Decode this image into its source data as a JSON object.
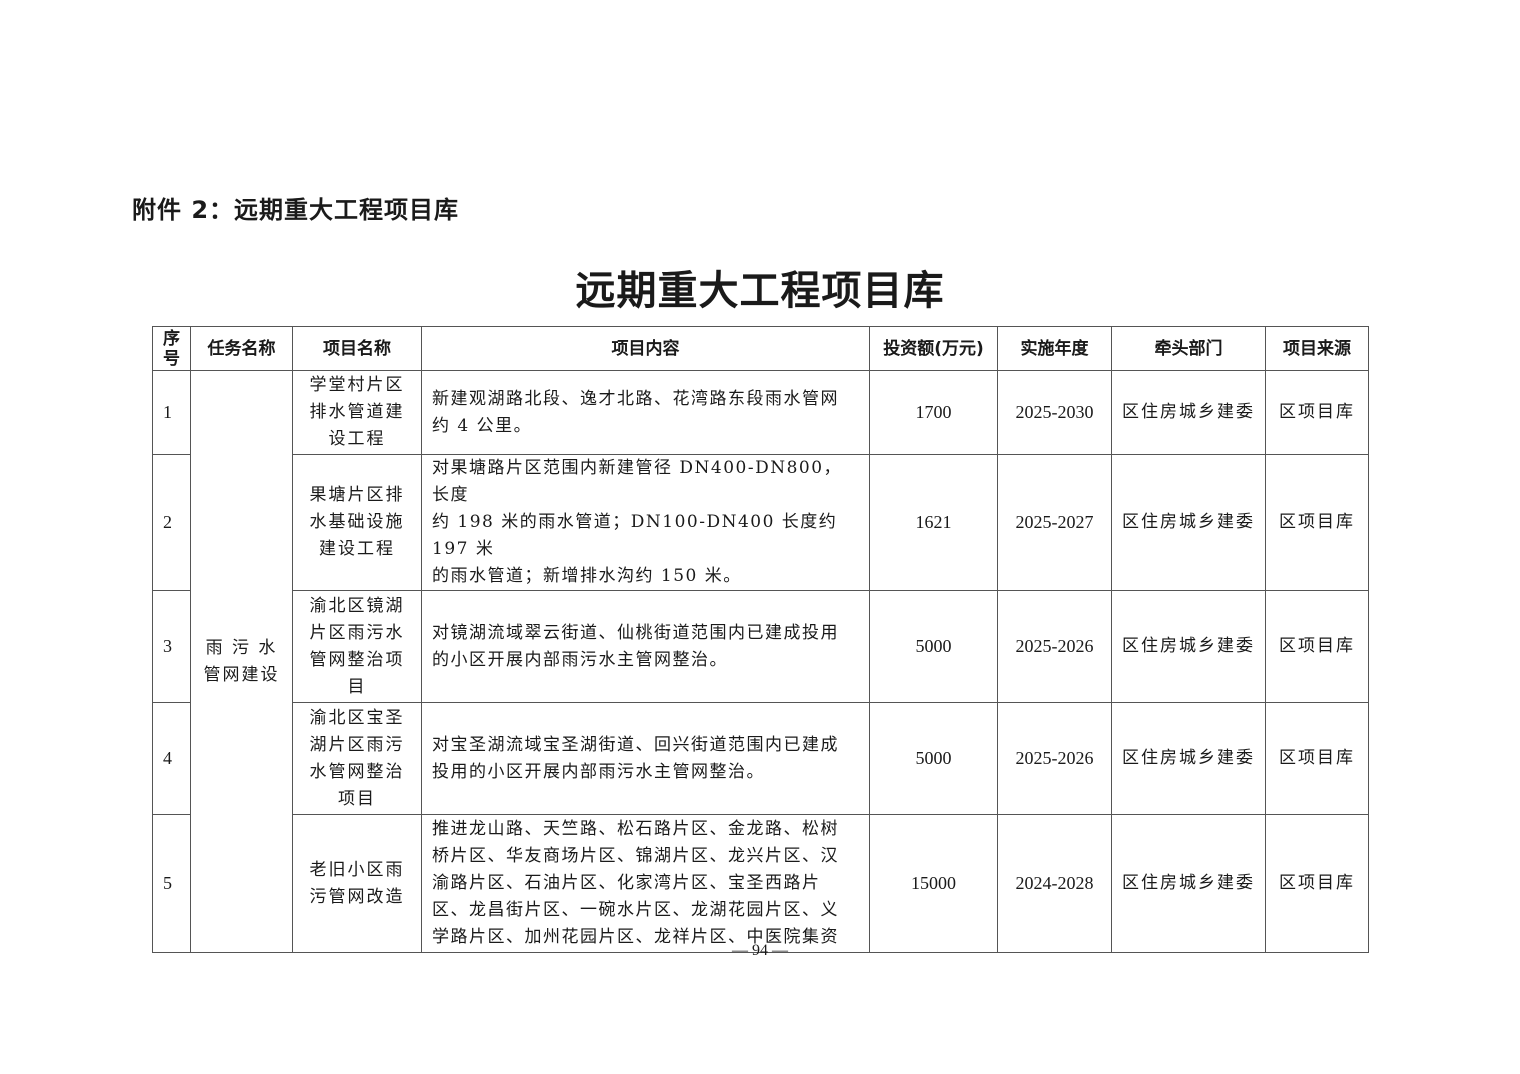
{
  "attachment_heading": "附件 2：远期重大工程项目库",
  "title": "远期重大工程项目库",
  "table": {
    "headers": [
      "序\n号",
      "任务名称",
      "项目名称",
      "项目内容",
      "投资额(万元)",
      "实施年度",
      "牵头部门",
      "项目来源"
    ],
    "task": "雨 污 水\n管网建设",
    "rows": [
      {
        "no": "1",
        "name": "学堂村片区\n排水管道建\n设工程",
        "content": "新建观湖路北段、逸才北路、花湾路东段雨水管网\n约 4 公里。",
        "investment": "1700",
        "years": "2025-2030",
        "dept": "区住房城乡建委",
        "source": "区项目库"
      },
      {
        "no": "2",
        "name": "果塘片区排\n水基础设施\n建设工程",
        "content": "对果塘路片区范围内新建管径 DN400-DN800，长度\n约 198 米的雨水管道；DN100-DN400 长度约 197 米\n的雨水管道；新增排水沟约 150 米。",
        "investment": "1621",
        "years": "2025-2027",
        "dept": "区住房城乡建委",
        "source": "区项目库"
      },
      {
        "no": "3",
        "name": "渝北区镜湖\n片区雨污水\n管网整治项\n目",
        "content": "对镜湖流域翠云街道、仙桃街道范围内已建成投用\n的小区开展内部雨污水主管网整治。",
        "investment": "5000",
        "years": "2025-2026",
        "dept": "区住房城乡建委",
        "source": "区项目库"
      },
      {
        "no": "4",
        "name": "渝北区宝圣\n湖片区雨污\n水管网整治\n项目",
        "content": "对宝圣湖流域宝圣湖街道、回兴街道范围内已建成\n投用的小区开展内部雨污水主管网整治。",
        "investment": "5000",
        "years": "2025-2026",
        "dept": "区住房城乡建委",
        "source": "区项目库"
      },
      {
        "no": "5",
        "name": "老旧小区雨\n污管网改造",
        "content": "推进龙山路、天竺路、松石路片区、金龙路、松树\n桥片区、华友商场片区、锦湖片区、龙兴片区、汉\n渝路片区、石油片区、化家湾片区、宝圣西路片\n区、龙昌街片区、一碗水片区、龙湖花园片区、义\n学路片区、加州花园片区、龙祥片区、中医院集资",
        "investment": "15000",
        "years": "2024-2028",
        "dept": "区住房城乡建委",
        "source": "区项目库"
      }
    ]
  },
  "page_number": "— 94 —"
}
